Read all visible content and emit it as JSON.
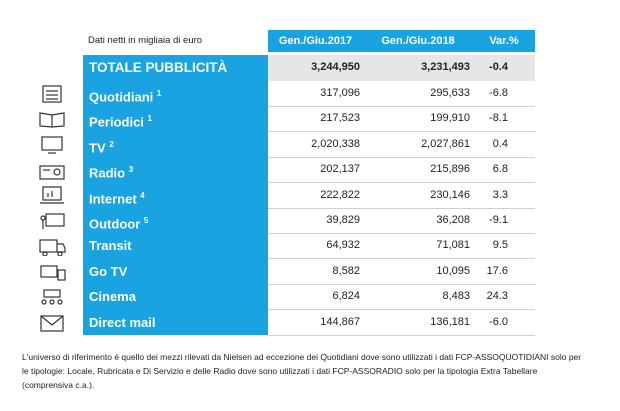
{
  "table": {
    "caption": "Dati netti in migliaia di euro",
    "columns": [
      "Gen./Giu.2017",
      "Gen./Giu.2018",
      "Var.%"
    ],
    "total": {
      "name": "TOTALE PUBBLICITÀ",
      "values": [
        "3,244,950",
        "3,231,493",
        "-0.4"
      ]
    },
    "rows": [
      {
        "name": "Quotidiani",
        "note": "1",
        "values": [
          "317,096",
          "295,633",
          "-6.8"
        ]
      },
      {
        "name": "Periodici",
        "note": "1",
        "values": [
          "217,523",
          "199,910",
          "-8.1"
        ]
      },
      {
        "name": "TV",
        "note": "2",
        "values": [
          "2,020,338",
          "2,027,861",
          "0.4"
        ]
      },
      {
        "name": "Radio",
        "note": "3",
        "values": [
          "202,137",
          "215,896",
          "6.8"
        ]
      },
      {
        "name": "Internet",
        "note": "4",
        "values": [
          "222,822",
          "230,146",
          "3.3"
        ]
      },
      {
        "name": "Outdoor",
        "note": "5",
        "values": [
          "39,829",
          "36,208",
          "-9.1"
        ]
      },
      {
        "name": "Transit",
        "values": [
          "64,932",
          "71,081",
          "9.5"
        ]
      },
      {
        "name": "Go TV",
        "values": [
          "8,582",
          "10,095",
          "17.6"
        ]
      },
      {
        "name": "Cinema",
        "values": [
          "6,824",
          "8,483",
          "24.3"
        ]
      },
      {
        "name": "Direct mail",
        "values": [
          "144,867",
          "136,181",
          "-6.0"
        ]
      }
    ]
  },
  "footnote": "L'universo di riferimento è quello dei mezzi rilevati da Nielsen ad eccezione dei Quotidiani dove sono utilizzati i dati FCP-ASSOQUOTIDIANI solo per le tipologie: Locale, Rubricata e Di Servizio e delle Radio dove sono utilizzati i dati FCP-ASSORADIO solo per la tipologia Extra Tabellare (comprensiva c.a.)."
}
